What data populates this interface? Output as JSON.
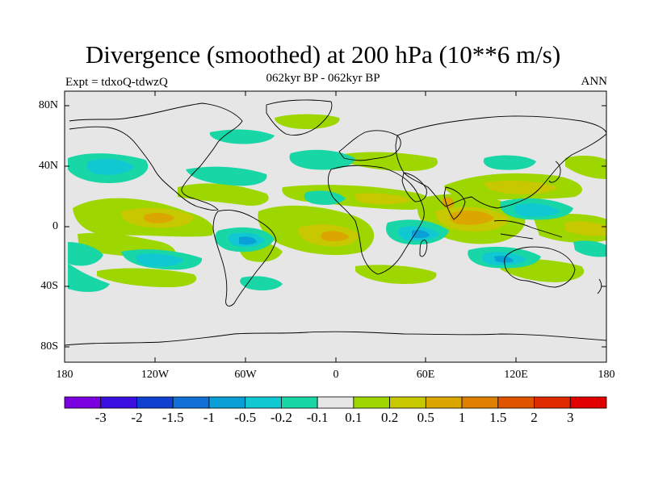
{
  "header": {
    "title": "Divergence (smoothed) at 200 hPa (10**6 m/s)",
    "subtitle": "062kyr BP - 062kyr BP",
    "experiment": "Expt = tdxoQ-tdwzQ",
    "season": "ANN"
  },
  "axes": {
    "y_labels": [
      "80N",
      "40N",
      "0",
      "40S",
      "80S"
    ],
    "x_labels": [
      "180",
      "120W",
      "60W",
      "0",
      "60E",
      "120E",
      "180"
    ]
  },
  "colorbar": {
    "labels": [
      "-3",
      "-2",
      "-1.5",
      "-1",
      "-0.5",
      "-0.2",
      "-0.1",
      "0.1",
      "0.2",
      "0.5",
      "1",
      "1.5",
      "2",
      "3"
    ],
    "colors": [
      "#7b00e0",
      "#3a0fe0",
      "#1040d0",
      "#1070d8",
      "#0a9fd6",
      "#10c8d2",
      "#18d6a6",
      "#e6e6e6",
      "#9ed600",
      "#c8c800",
      "#dca600",
      "#e08000",
      "#e05400",
      "#e02a00",
      "#e00000"
    ]
  },
  "map": {
    "background_color": "#e6e6e6",
    "lat_range": [
      -90,
      90
    ],
    "lon_range": [
      -180,
      180
    ]
  }
}
